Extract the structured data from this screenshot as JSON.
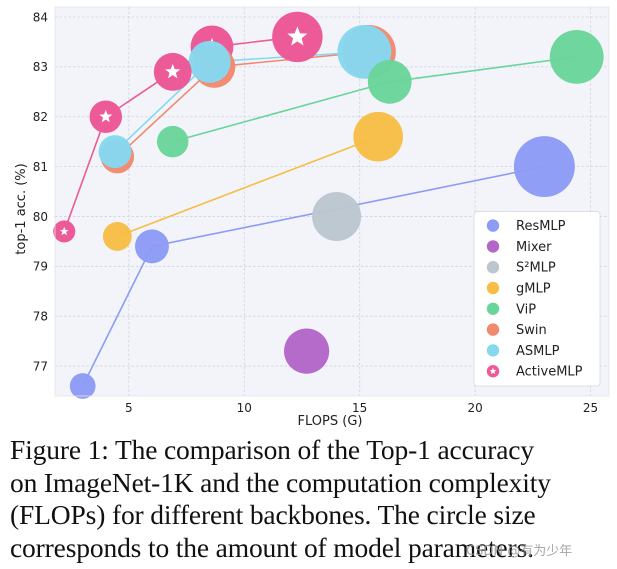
{
  "chart_data": {
    "type": "scatter",
    "xlabel": "FLOPS (G)",
    "ylabel": "top-1 acc. (%)",
    "xlim": [
      1.8,
      25.8
    ],
    "ylim": [
      76.4,
      84.2
    ],
    "xticks": [
      5,
      10,
      15,
      20,
      25
    ],
    "yticks": [
      77,
      78,
      79,
      80,
      81,
      82,
      83,
      84
    ],
    "grid": true,
    "legend_position": "lower-right",
    "series": [
      {
        "name": "ResMLP",
        "color": "#8c9cf5",
        "points": [
          {
            "x": 3.0,
            "y": 76.6,
            "params": 15
          },
          {
            "x": 6.0,
            "y": 79.4,
            "params": 30
          },
          {
            "x": 23.0,
            "y": 81.0,
            "params": 116
          }
        ]
      },
      {
        "name": "Mixer",
        "color": "#b266c8",
        "points": [
          {
            "x": 12.7,
            "y": 77.3,
            "params": 59
          }
        ]
      },
      {
        "name": "S²MLP",
        "color": "#bcc6cf",
        "points": [
          {
            "x": 14.0,
            "y": 80.0,
            "params": 71
          }
        ]
      },
      {
        "name": "gMLP",
        "color": "#f7bd45",
        "points": [
          {
            "x": 4.5,
            "y": 79.6,
            "params": 20
          },
          {
            "x": 15.8,
            "y": 81.6,
            "params": 73
          }
        ]
      },
      {
        "name": "ViP",
        "color": "#6ad59a",
        "points": [
          {
            "x": 6.9,
            "y": 81.5,
            "params": 25
          },
          {
            "x": 16.3,
            "y": 82.7,
            "params": 55
          },
          {
            "x": 24.4,
            "y": 83.2,
            "params": 88
          }
        ]
      },
      {
        "name": "Swin",
        "color": "#f0896e",
        "points": [
          {
            "x": 4.5,
            "y": 81.2,
            "params": 29
          },
          {
            "x": 8.7,
            "y": 83.0,
            "params": 50
          },
          {
            "x": 15.4,
            "y": 83.3,
            "params": 88
          }
        ]
      },
      {
        "name": "ASMLP",
        "color": "#86d8ee",
        "points": [
          {
            "x": 4.4,
            "y": 81.3,
            "params": 28
          },
          {
            "x": 8.5,
            "y": 83.1,
            "params": 50
          },
          {
            "x": 15.2,
            "y": 83.3,
            "params": 88
          }
        ]
      },
      {
        "name": "ActiveMLP",
        "color": "#ec5b98",
        "marker": "star",
        "points": [
          {
            "x": 2.2,
            "y": 79.7,
            "params": 10
          },
          {
            "x": 4.0,
            "y": 82.0,
            "params": 27
          },
          {
            "x": 6.9,
            "y": 82.9,
            "params": 39
          },
          {
            "x": 8.6,
            "y": 83.4,
            "params": 52
          },
          {
            "x": 12.3,
            "y": 83.6,
            "params": 76
          }
        ]
      }
    ]
  },
  "caption": {
    "lines": [
      "Figure 1: The comparison of the Top-1 accuracy",
      "on ImageNet-1K and the computation complexity",
      "(FLOPs) for different backbones. The circle size",
      "corresponds to the amount of model parameters."
    ]
  },
  "watermark": "CSDN @有为少年"
}
